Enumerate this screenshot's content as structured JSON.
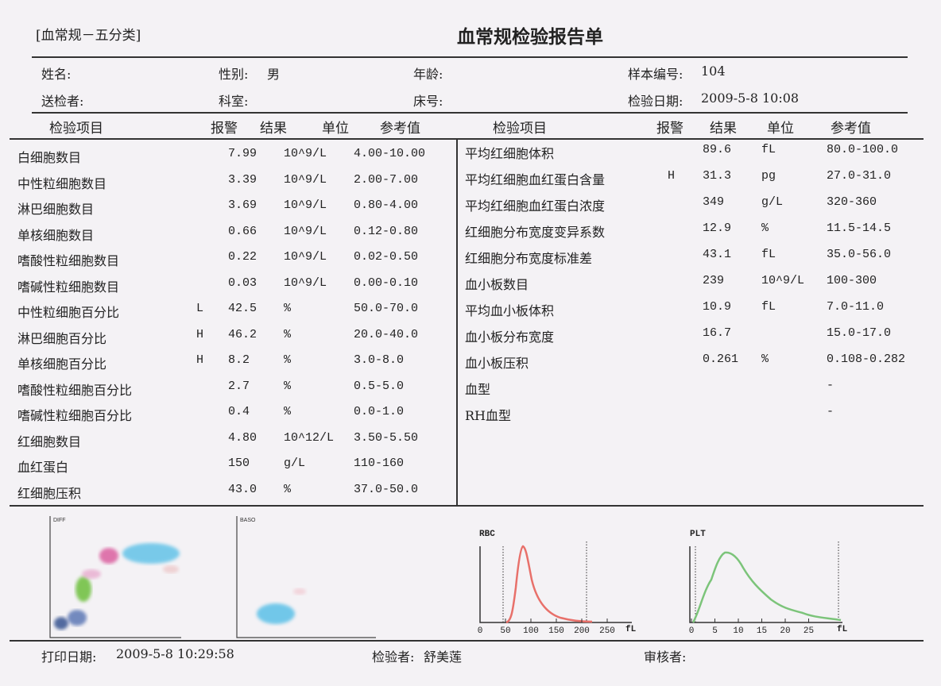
{
  "header": {
    "category": "[血常规－五分类]",
    "title": "血常规检验报告单"
  },
  "info": {
    "name_label": "姓名:",
    "sex_label": "性别:",
    "sex": "男",
    "age_label": "年龄:",
    "sample_label": "样本编号:",
    "sample": "104",
    "sender_label": "送检者:",
    "dept_label": "科室:",
    "bed_label": "床号:",
    "date_label": "检验日期:",
    "date": "2009-5-8  10:08"
  },
  "columns": {
    "item": "检验项目",
    "alarm": "报警",
    "result": "结果",
    "unit": "单位",
    "ref": "参考值"
  },
  "left_rows": [
    {
      "item": "白细胞数目",
      "flag": "",
      "result": "7.99",
      "unit": "10^9/L",
      "ref": "4.00-10.00"
    },
    {
      "item": "中性粒细胞数目",
      "flag": "",
      "result": "3.39",
      "unit": "10^9/L",
      "ref": "2.00-7.00"
    },
    {
      "item": "淋巴细胞数目",
      "flag": "",
      "result": "3.69",
      "unit": "10^9/L",
      "ref": "0.80-4.00"
    },
    {
      "item": "单核细胞数目",
      "flag": "",
      "result": "0.66",
      "unit": "10^9/L",
      "ref": "0.12-0.80"
    },
    {
      "item": "嗜酸性粒细胞数目",
      "flag": "",
      "result": "0.22",
      "unit": "10^9/L",
      "ref": "0.02-0.50"
    },
    {
      "item": "嗜碱性粒细胞数目",
      "flag": "",
      "result": "0.03",
      "unit": "10^9/L",
      "ref": "0.00-0.10"
    },
    {
      "item": "中性粒细胞百分比",
      "flag": "L",
      "result": "42.5",
      "unit": "%",
      "ref": "50.0-70.0"
    },
    {
      "item": "淋巴细胞百分比",
      "flag": "H",
      "result": "46.2",
      "unit": "%",
      "ref": "20.0-40.0"
    },
    {
      "item": "单核细胞百分比",
      "flag": "H",
      "result": "8.2",
      "unit": "%",
      "ref": "3.0-8.0"
    },
    {
      "item": "嗜酸性粒细胞百分比",
      "flag": "",
      "result": "2.7",
      "unit": "%",
      "ref": "0.5-5.0"
    },
    {
      "item": "嗜碱性粒细胞百分比",
      "flag": "",
      "result": "0.4",
      "unit": "%",
      "ref": "0.0-1.0"
    },
    {
      "item": "红细胞数目",
      "flag": "",
      "result": "4.80",
      "unit": "10^12/L",
      "ref": "3.50-5.50"
    },
    {
      "item": "血红蛋白",
      "flag": "",
      "result": "150",
      "unit": "g/L",
      "ref": "110-160"
    },
    {
      "item": "红细胞压积",
      "flag": "",
      "result": "43.0",
      "unit": "%",
      "ref": "37.0-50.0"
    }
  ],
  "right_rows": [
    {
      "item": "平均红细胞体积",
      "flag": "",
      "result": "89.6",
      "unit": "fL",
      "ref": "80.0-100.0"
    },
    {
      "item": "平均红细胞血红蛋白含量",
      "flag": "H",
      "result": "31.3",
      "unit": "pg",
      "ref": "27.0-31.0"
    },
    {
      "item": "平均红细胞血红蛋白浓度",
      "flag": "",
      "result": "349",
      "unit": "g/L",
      "ref": "320-360"
    },
    {
      "item": "红细胞分布宽度变异系数",
      "flag": "",
      "result": "12.9",
      "unit": "%",
      "ref": "11.5-14.5"
    },
    {
      "item": "红细胞分布宽度标准差",
      "flag": "",
      "result": "43.1",
      "unit": "fL",
      "ref": "35.0-56.0"
    },
    {
      "item": "血小板数目",
      "flag": "",
      "result": "239",
      "unit": "10^9/L",
      "ref": "100-300"
    },
    {
      "item": "平均血小板体积",
      "flag": "",
      "result": "10.9",
      "unit": "fL",
      "ref": "7.0-11.0"
    },
    {
      "item": "血小板分布宽度",
      "flag": "",
      "result": "16.7",
      "unit": "",
      "ref": "15.0-17.0"
    },
    {
      "item": "血小板压积",
      "flag": "",
      "result": "0.261",
      "unit": "%",
      "ref": "0.108-0.282"
    },
    {
      "item": "血型",
      "flag": "",
      "result": "",
      "unit": "",
      "ref": "-"
    },
    {
      "item": "RH血型",
      "flag": "",
      "result": "",
      "unit": "",
      "ref": "-"
    }
  ],
  "plots": {
    "diff": "DIFF",
    "baso": "BASO",
    "rbc": {
      "title": "RBC",
      "ticks": [
        "0",
        "50",
        "100",
        "150",
        "200",
        "250"
      ],
      "unit": "fL"
    },
    "plt": {
      "title": "PLT",
      "ticks": [
        "0",
        "5",
        "10",
        "15",
        "20",
        "25"
      ],
      "unit": "fL"
    },
    "colors": {
      "rbc_curve": "#e8706a",
      "plt_curve": "#7cc47a",
      "diff_cyan": "#63c3e8",
      "diff_pink": "#d9579a",
      "diff_green": "#6cbf3a",
      "diff_navy": "#2c4a8a"
    }
  },
  "footer": {
    "print_label": "打印日期:",
    "print_date": "2009-5-8  10:29:58",
    "tester_label": "检验者:",
    "tester": "舒美莲",
    "reviewer_label": "审核者:"
  }
}
